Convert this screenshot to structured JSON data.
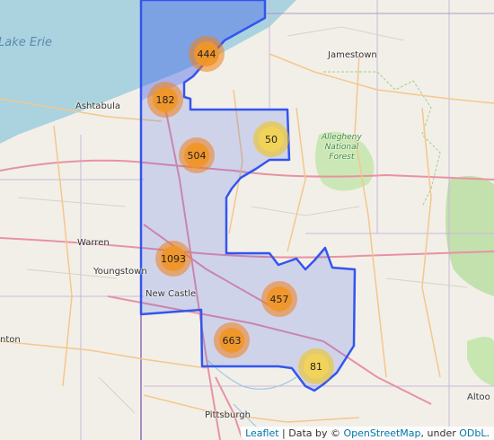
{
  "map": {
    "labels": {
      "lake_erie": "Lake Erie",
      "jamestown": "Jamestown",
      "ashtabula": "Ashtabula",
      "allegheny_forest": "Allegheny\nNational\nForest",
      "warren": "Warren",
      "youngstown": "Youngstown",
      "new_castle": "New Castle",
      "canton": "nton",
      "pittsburgh": "Pittsburgh",
      "altoona": "Altoo"
    },
    "clusters": [
      {
        "count": "444",
        "color": "orange"
      },
      {
        "count": "182",
        "color": "orange"
      },
      {
        "count": "50",
        "color": "yellow"
      },
      {
        "count": "504",
        "color": "orange"
      },
      {
        "count": "1093",
        "color": "orange"
      },
      {
        "count": "457",
        "color": "orange"
      },
      {
        "count": "663",
        "color": "orange"
      },
      {
        "count": "81",
        "color": "yellow"
      }
    ],
    "region_color": "#3355ee"
  },
  "attribution": {
    "leaflet": "Leaflet",
    "sep1": " | Data by © ",
    "osm": "OpenStreetMap",
    "sep2": ", under ",
    "odbl": "ODbL",
    "end": "."
  }
}
